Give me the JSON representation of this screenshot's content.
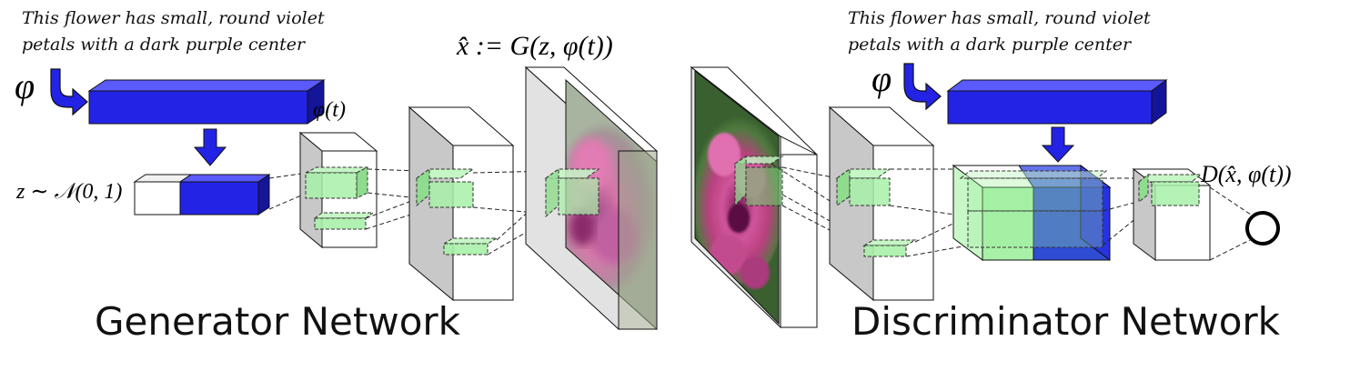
{
  "generator": {
    "caption_line1": "This flower has small, round violet",
    "caption_line2": "petals with a dark purple center",
    "phi_symbol": "φ",
    "phi_t_label": "φ(t)",
    "noise_label": "z ∼ 𝒩(0, 1)",
    "output_label": "x̂ := G(z, φ(t))",
    "title": "Generator Network"
  },
  "discriminator": {
    "caption_line1": "This flower has small, round violet",
    "caption_line2": "petals with a dark purple center",
    "phi_symbol": "φ",
    "output_label": "D(x̂, φ(t))",
    "title": "Discriminator Network"
  },
  "colors": {
    "embedding_blue": "#2323e6",
    "embedding_blue_dark": "#15159a",
    "feature_green": "#a8f0a8",
    "layer_side_gray": "#c8c8c8",
    "image_pink": "#c8488c",
    "image_green": "#3c6a34"
  },
  "icons": {
    "arrow_curved": "curved-down-right-arrow-icon",
    "arrow_down": "down-arrow-icon",
    "output_node": "circle-node-icon"
  }
}
